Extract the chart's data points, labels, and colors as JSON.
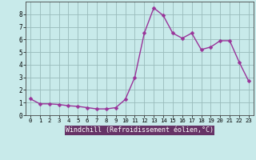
{
  "x": [
    0,
    1,
    2,
    3,
    4,
    5,
    6,
    7,
    8,
    9,
    10,
    11,
    12,
    13,
    14,
    15,
    16,
    17,
    18,
    19,
    20,
    21,
    22,
    23
  ],
  "y": [
    1.3,
    0.9,
    0.9,
    0.85,
    0.75,
    0.7,
    0.6,
    0.5,
    0.5,
    0.6,
    1.25,
    3.0,
    6.5,
    8.5,
    7.9,
    6.5,
    6.1,
    6.5,
    5.2,
    5.4,
    5.9,
    5.9,
    4.2,
    2.7
  ],
  "line_color": "#993399",
  "marker": "D",
  "marker_size": 2.5,
  "linewidth": 1.0,
  "bg_color": "#c8eaea",
  "grid_color": "#99bbbb",
  "xlabel": "Windchill (Refroidissement éolien,°C)",
  "xlabel_fontsize": 6.0,
  "tick_fontsize": 6.0,
  "xlim": [
    -0.5,
    23.5
  ],
  "ylim": [
    0,
    9
  ],
  "yticks": [
    0,
    1,
    2,
    3,
    4,
    5,
    6,
    7,
    8
  ],
  "xticks": [
    0,
    1,
    2,
    3,
    4,
    5,
    6,
    7,
    8,
    9,
    10,
    11,
    12,
    13,
    14,
    15,
    16,
    17,
    18,
    19,
    20,
    21,
    22,
    23
  ],
  "xlabel_bg": "#663366",
  "xlabel_fg": "#ffffff",
  "spine_color": "#336633"
}
